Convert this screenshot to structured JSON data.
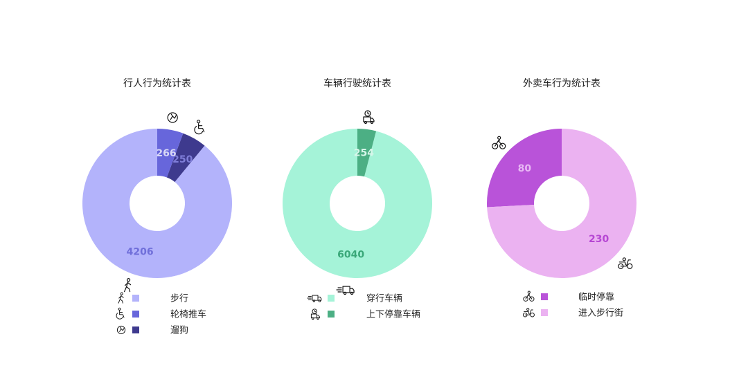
{
  "chart_data": [
    {
      "type": "pie",
      "title": "行人行为统计表",
      "categories": [
        "步行",
        "轮椅推车",
        "遛狗"
      ],
      "values": [
        4206,
        250,
        266
      ],
      "colors": [
        "#b3b3fb",
        "#3e3a8e",
        "#6766db"
      ],
      "label_colors": [
        "#6f6ed9",
        "#7f7ed9",
        "#d8d8f6"
      ],
      "icons": [
        "walking-person-icon",
        "wheelchair-icon",
        "dog-walk-icon"
      ],
      "legend_order": [
        0,
        1,
        2
      ],
      "legend_colors": [
        "#b3b3fb",
        "#6766db",
        "#3e3a8e"
      ],
      "legend_position": "bottom"
    },
    {
      "type": "pie",
      "title": "车辆行驶统计表",
      "categories": [
        "穿行车辆",
        "上下停靠车辆"
      ],
      "values": [
        6040,
        254
      ],
      "colors": [
        "#a5f3d8",
        "#4caf84"
      ],
      "label_colors": [
        "#3aa879",
        "#d7f6ea"
      ],
      "icons": [
        "moving-truck-icon",
        "parked-truck-icon"
      ],
      "legend_order": [
        0,
        1
      ],
      "legend_colors": [
        "#a5f3d8",
        "#4caf84"
      ],
      "legend_position": "bottom"
    },
    {
      "type": "pie",
      "title": "外卖车行为统计表",
      "categories": [
        "临时停靠",
        "进入步行街"
      ],
      "values": [
        80,
        230
      ],
      "colors": [
        "#b953d9",
        "#ebb2f1"
      ],
      "label_colors": [
        "#e8b8f4",
        "#b646d3"
      ],
      "icons": [
        "bicycle-rider-icon",
        "scooter-icon"
      ],
      "legend_order": [
        0,
        1
      ],
      "legend_colors": [
        "#b953d9",
        "#ebb2f1"
      ],
      "legend_position": "bottom"
    }
  ]
}
